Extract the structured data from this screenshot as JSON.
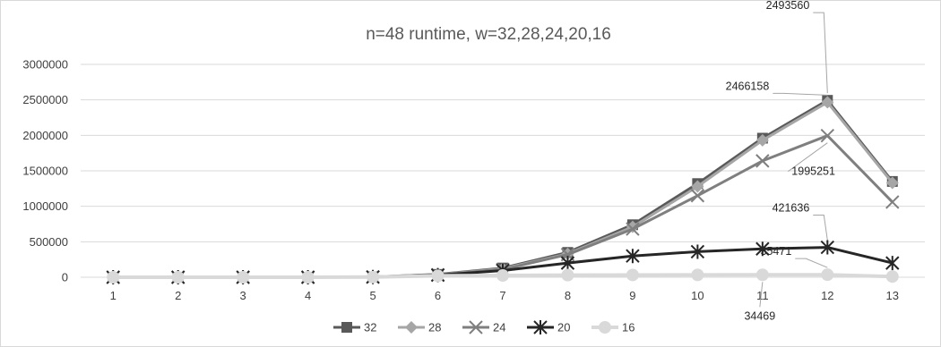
{
  "chart_data": {
    "type": "line",
    "title": "n=48 runtime, w=32,28,24,20,16",
    "xlabel": "",
    "ylabel": "",
    "categories": [
      "1",
      "2",
      "3",
      "4",
      "5",
      "6",
      "7",
      "8",
      "9",
      "10",
      "11",
      "12",
      "13"
    ],
    "ylim": [
      0,
      3000000
    ],
    "yticks": [
      "0",
      "500000",
      "1000000",
      "1500000",
      "2000000",
      "2500000",
      "3000000"
    ],
    "grid": "horizontal",
    "legend": "bottom",
    "series": [
      {
        "name": "32",
        "color": "#595959",
        "marker": "square",
        "width": 3,
        "values": [
          1,
          1,
          1,
          2,
          5000,
          40000,
          130000,
          350000,
          740000,
          1320000,
          1960000,
          2493560,
          1350000
        ]
      },
      {
        "name": "28",
        "color": "#a6a6a6",
        "marker": "diamond",
        "width": 3,
        "values": [
          1,
          1,
          1,
          2,
          4500,
          38000,
          120000,
          330000,
          710000,
          1280000,
          1930000,
          2466158,
          1330000
        ]
      },
      {
        "name": "24",
        "color": "#7f7f7f",
        "marker": "x",
        "width": 3,
        "values": [
          1,
          1,
          1,
          2,
          4000,
          35000,
          110000,
          320000,
          680000,
          1150000,
          1640000,
          1995251,
          1060000
        ]
      },
      {
        "name": "20",
        "color": "#262626",
        "marker": "star",
        "width": 3,
        "values": [
          1,
          1,
          1,
          2,
          3000,
          30000,
          95000,
          200000,
          300000,
          360000,
          400000,
          421636,
          200000
        ]
      },
      {
        "name": "16",
        "color": "#d9d9d9",
        "marker": "circle",
        "width": 4,
        "values": [
          1,
          1,
          1,
          2,
          2000,
          20000,
          25000,
          30000,
          32000,
          33000,
          34469,
          35471,
          10000
        ]
      }
    ],
    "data_labels": [
      {
        "series": 0,
        "index": 11,
        "text": "2493560"
      },
      {
        "series": 1,
        "index": 11,
        "text": "2466158"
      },
      {
        "series": 2,
        "index": 11,
        "text": "1995251"
      },
      {
        "series": 3,
        "index": 11,
        "text": "421636"
      },
      {
        "series": 4,
        "index": 11,
        "text": "35471"
      },
      {
        "series": 4,
        "index": 10,
        "text": "34469"
      }
    ]
  }
}
